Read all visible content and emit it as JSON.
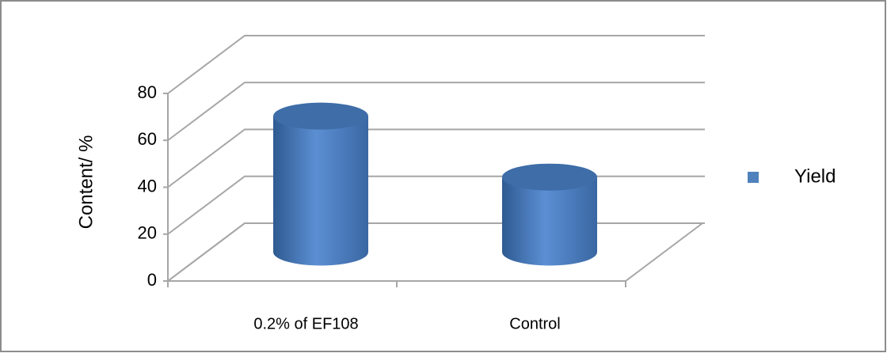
{
  "chart_data": {
    "type": "bar3d",
    "y_label": "Content/ %",
    "categories": [
      "0.2% of EF108",
      "Control"
    ],
    "series": [
      {
        "name": "Yield",
        "color": "#4f81bd",
        "values": [
          58,
          32
        ]
      }
    ],
    "ylim": [
      0,
      80
    ],
    "yticks": [
      0,
      20,
      40,
      60,
      80
    ],
    "grid": true,
    "legend": "right"
  }
}
